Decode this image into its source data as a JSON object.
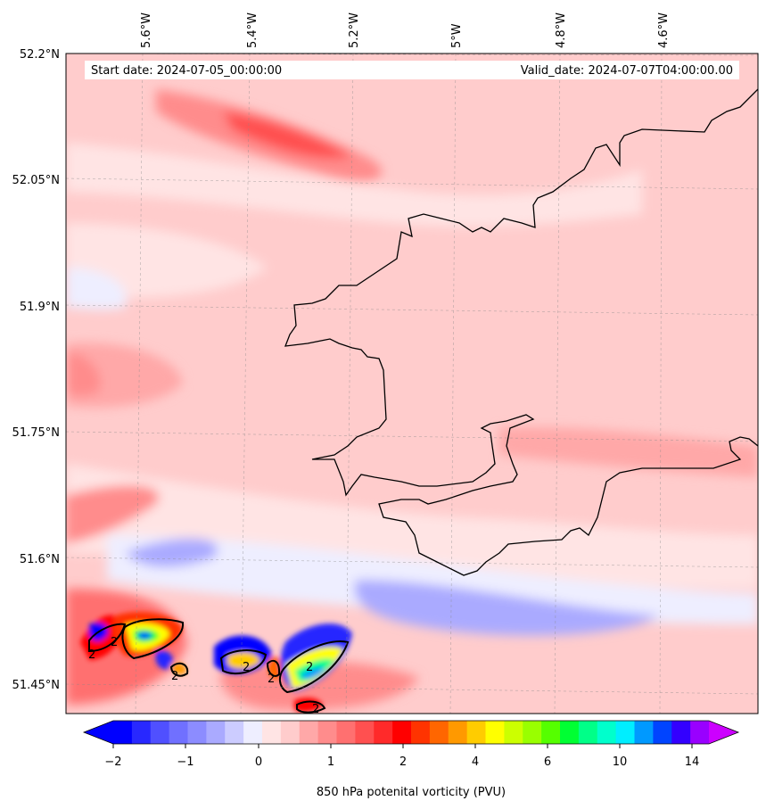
{
  "header": {
    "start_date": "Start date: 2024-07-05_00:00:00",
    "valid_date": "Valid_date: 2024-07-07T04:00:00.00"
  },
  "longitude_ticks": [
    "5.6°W",
    "5.4°W",
    "5.2°W",
    "5°W",
    "4.8°W",
    "4.6°W"
  ],
  "latitude_ticks": [
    "52.2°N",
    "52.05°N",
    "51.9°N",
    "51.75°N",
    "51.6°N",
    "51.45°N"
  ],
  "map_extent": {
    "lon_min": -5.75,
    "lon_max": -4.42,
    "lat_min": 51.42,
    "lat_max": 52.2
  },
  "field": {
    "variable": "850 hPa potential vorticity",
    "units": "PVU",
    "contour_label": "2"
  },
  "colorbar": {
    "label": "850 hPa potenital vorticity (PVU)",
    "tick_labels": [
      "−2",
      "−1",
      "0",
      "1",
      "2",
      "4",
      "6",
      "10",
      "14"
    ],
    "colors": [
      "#0000ff",
      "#2828ff",
      "#5050ff",
      "#7070ff",
      "#8c8cff",
      "#aaaaff",
      "#ccccff",
      "#eeeeff",
      "#ffe4e4",
      "#ffcccc",
      "#ffa8a8",
      "#ff8c8c",
      "#ff7070",
      "#ff5050",
      "#ff2a2a",
      "#ff0000",
      "#ff3300",
      "#ff6600",
      "#ff9900",
      "#ffcc00",
      "#ffff00",
      "#ccff00",
      "#99ff00",
      "#55ff00",
      "#00ff33",
      "#00ff88",
      "#00ffcc",
      "#00eeff",
      "#0099ff",
      "#0044ff",
      "#3300ff",
      "#9900ff"
    ],
    "extend_min_color": "#0000ff",
    "extend_max_color": "#cc00ff"
  }
}
